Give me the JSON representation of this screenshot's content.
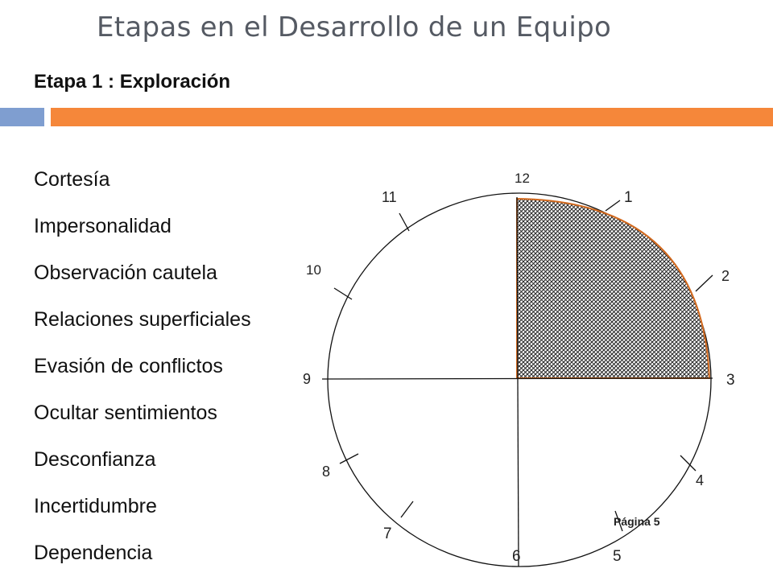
{
  "title": "Etapas en el Desarrollo de un Equipo",
  "subtitle": "Etapa 1 : Exploración",
  "traits": [
    "Cortesía",
    "Impersonalidad",
    "Observación cautela",
    "Relaciones superficiales",
    "Evasión de conflictos",
    "Ocultar sentimientos",
    "Desconfianza",
    "Incertidumbre",
    "Dependencia"
  ],
  "clock": {
    "hour_labels": [
      "12",
      "1",
      "2",
      "3",
      "4",
      "5",
      "6",
      "7",
      "8",
      "9",
      "10",
      "11"
    ],
    "shaded_span_hours": [
      12,
      3
    ]
  },
  "page_label": "Página 5",
  "colors": {
    "title": "#555a63",
    "accent_blue": "#7f9ed0",
    "accent_orange": "#f5873a",
    "sector_edge": "#d2691e"
  }
}
